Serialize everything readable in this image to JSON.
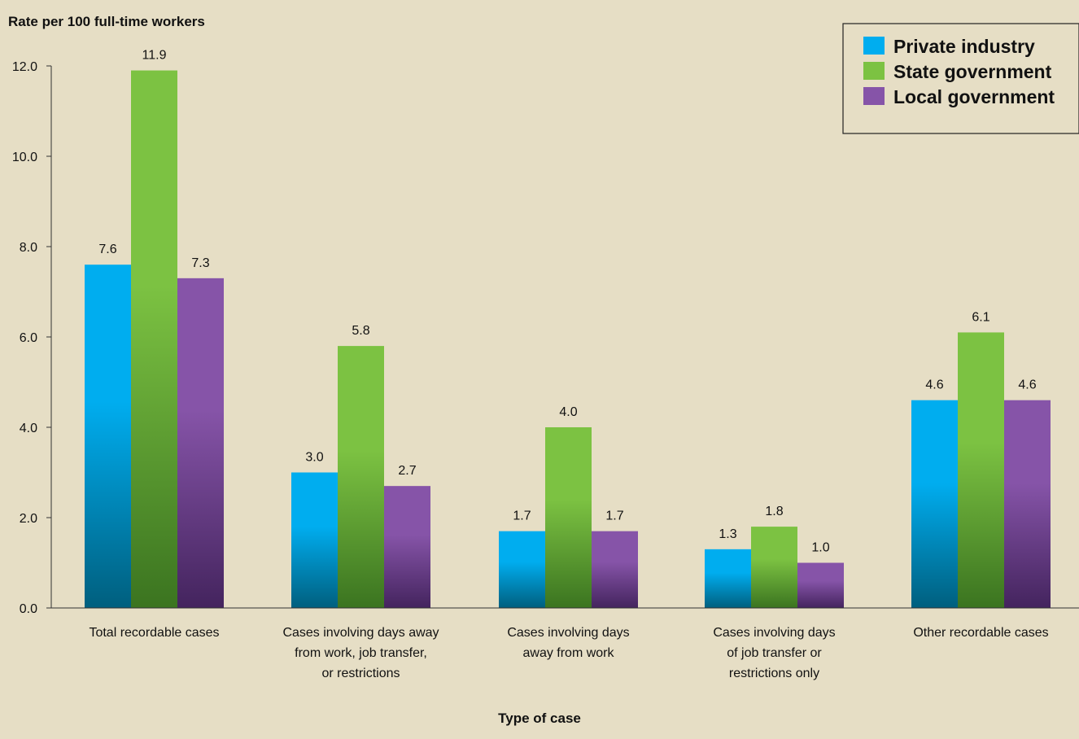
{
  "chart_data": {
    "type": "bar",
    "ylabel": "Rate per 100 full-time workers",
    "xlabel": "Type of case",
    "ylim": [
      0,
      12
    ],
    "yticks": [
      "0.0",
      "2.0",
      "4.0",
      "6.0",
      "8.0",
      "10.0",
      "12.0"
    ],
    "grid": false,
    "legend_position": "top-right",
    "categories": [
      [
        "Total recordable cases"
      ],
      [
        "Cases involving days away",
        "from work, job transfer,",
        "or restrictions"
      ],
      [
        "Cases involving days",
        "away from work"
      ],
      [
        "Cases involving days",
        "of job transfer or",
        "restrictions only"
      ],
      [
        "Other recordable cases"
      ]
    ],
    "series": [
      {
        "name": "Private industry",
        "color": "#00adef",
        "color_dark": "#005f7e",
        "values": [
          7.6,
          3.0,
          1.7,
          1.3,
          4.6
        ],
        "labels": [
          "7.6",
          "3.0",
          "1.7",
          "1.3",
          "4.6"
        ]
      },
      {
        "name": "State government",
        "color": "#7cc242",
        "color_dark": "#3b7420",
        "values": [
          11.9,
          5.8,
          4.0,
          1.8,
          6.1
        ],
        "labels": [
          "11.9",
          "5.8",
          "4.0",
          "1.8",
          "6.1"
        ]
      },
      {
        "name": "Local government",
        "color": "#8654a8",
        "color_dark": "#44245e",
        "values": [
          7.3,
          2.7,
          1.7,
          1.0,
          4.6
        ],
        "labels": [
          "7.3",
          "2.7",
          "1.7",
          "1.0",
          "4.6"
        ]
      }
    ]
  }
}
